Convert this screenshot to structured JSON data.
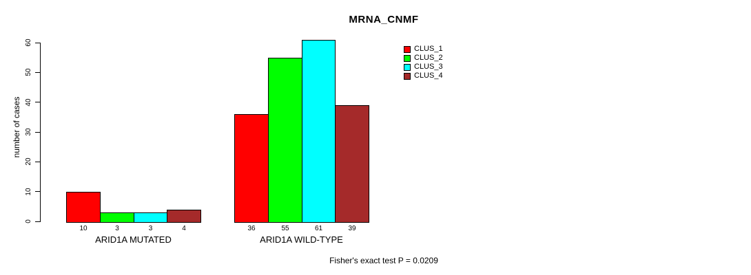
{
  "chart_data": {
    "type": "bar",
    "title": "MRNA_CNMF",
    "ylabel": "number of cases",
    "xlabel": "",
    "annotation": "Fisher's exact test P = 0.0209",
    "categories": [
      "ARID1A MUTATED",
      "ARID1A WILD-TYPE"
    ],
    "series": [
      {
        "name": "CLUS_1",
        "color": "#FF0000",
        "values": [
          10,
          36
        ]
      },
      {
        "name": "CLUS_2",
        "color": "#00FF00",
        "values": [
          3,
          55
        ]
      },
      {
        "name": "CLUS_3",
        "color": "#00FFFF",
        "values": [
          3,
          61
        ]
      },
      {
        "name": "CLUS_4",
        "color": "#A52A2A",
        "values": [
          4,
          39
        ]
      }
    ],
    "yticks": [
      0,
      10,
      20,
      30,
      40,
      50,
      60
    ],
    "ylim": [
      0,
      60
    ],
    "show_bar_value_labels": true,
    "legend_position": "top-right",
    "grid": false,
    "axis_color": "#000000",
    "background_color": "#ffffff"
  }
}
